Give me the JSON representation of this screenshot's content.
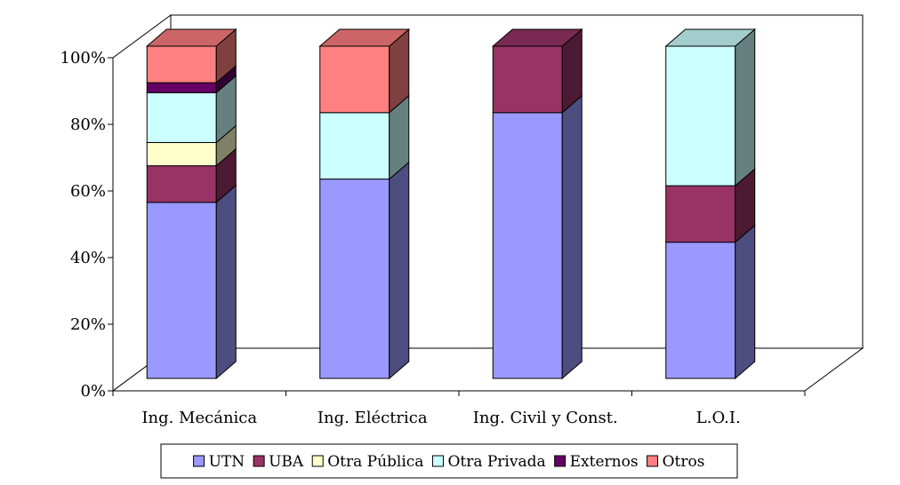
{
  "chart_data": {
    "type": "bar",
    "stacked": true,
    "percent_stacked": true,
    "three_d": true,
    "title": "",
    "xlabel": "",
    "ylabel": "",
    "ylim": [
      0,
      100
    ],
    "yticks": [
      "0%",
      "20%",
      "40%",
      "60%",
      "80%",
      "100%"
    ],
    "grid": false,
    "legend_position": "bottom",
    "categories": [
      "Ing. Mecánica",
      "Ing. Eléctrica",
      "Ing. Civil y Const.",
      "L.O.I."
    ],
    "series": [
      {
        "name": "UTN",
        "color": "#9999FF",
        "values": [
          53,
          60,
          80,
          41
        ]
      },
      {
        "name": "UBA",
        "color": "#993366",
        "values": [
          11,
          0,
          20,
          17
        ]
      },
      {
        "name": "Otra Pública",
        "color": "#FFFFCC",
        "values": [
          7,
          0,
          0,
          0
        ]
      },
      {
        "name": "Otra Privada",
        "color": "#CCFFFF",
        "values": [
          15,
          20,
          0,
          42
        ]
      },
      {
        "name": "Externos",
        "color": "#660066",
        "values": [
          3,
          0,
          0,
          0
        ]
      },
      {
        "name": "Otros",
        "color": "#FF8080",
        "values": [
          11,
          20,
          0,
          0
        ]
      }
    ]
  }
}
